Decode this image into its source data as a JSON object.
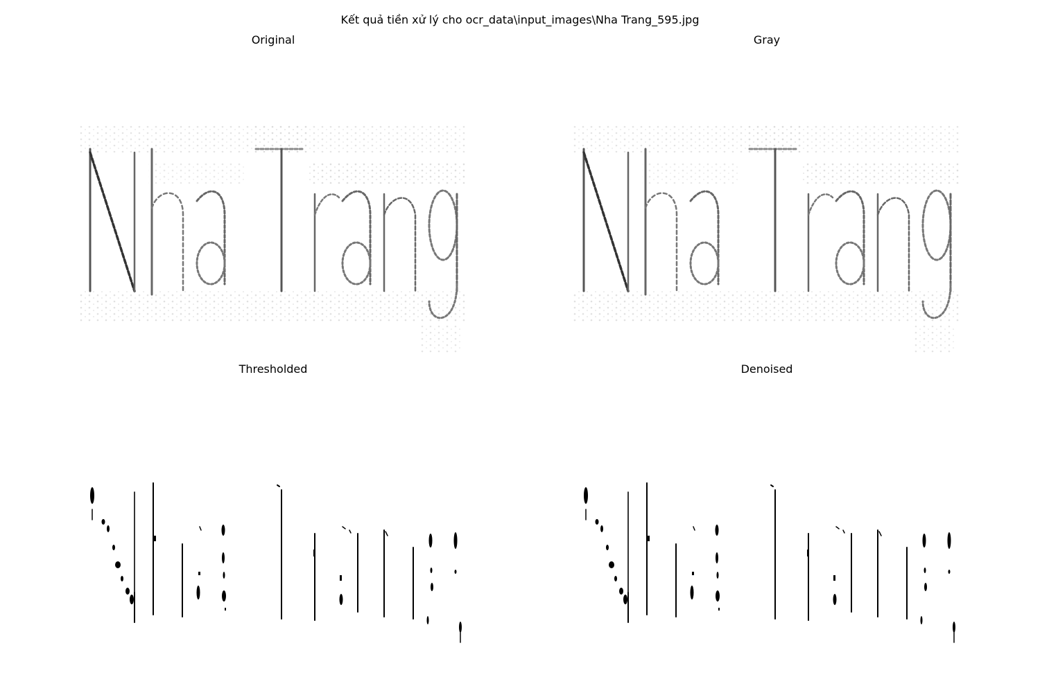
{
  "figure": {
    "suptitle": "Kết quả tiền xử lý cho ocr_data\\input_images\\Nha Trang_595.jpg"
  },
  "panels": [
    {
      "title": "Original",
      "text": "Nha Trang"
    },
    {
      "title": "Gray",
      "text": "Nha Trang"
    },
    {
      "title": "Thresholded",
      "text": "Nha Trang"
    },
    {
      "title": "Denoised",
      "text": "Nha Trang"
    }
  ],
  "colors": {
    "background": "#ffffff",
    "ink_dark": "#000000",
    "ink_gray": "#555555",
    "haze": "#d9d9d9"
  }
}
